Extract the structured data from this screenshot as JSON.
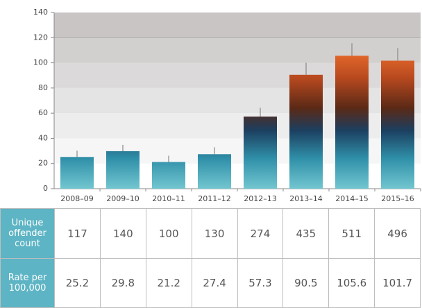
{
  "chart_data": {
    "type": "bar",
    "categories": [
      "2008–09",
      "2009–10",
      "2010–11",
      "2011–12",
      "2012–13",
      "2013–14",
      "2014–15",
      "2015–16"
    ],
    "values": [
      25.2,
      29.8,
      21.2,
      27.4,
      57.3,
      90.5,
      105.6,
      101.7
    ],
    "errors": [
      5,
      5,
      5,
      5.5,
      7,
      9.5,
      10,
      10
    ],
    "ylim": [
      0,
      140
    ],
    "yticks": [
      0,
      20,
      40,
      60,
      80,
      100,
      120,
      140
    ],
    "band_colors": [
      "#ffffff",
      "#f6f6f6",
      "#eeeded",
      "#e5e4e4",
      "#dbd9d9",
      "#d2cfcf",
      "#c9c5c5"
    ],
    "error_color": "#888888"
  },
  "table": {
    "row_headers": [
      "Unique offender count",
      "Rate per 100,000"
    ],
    "counts": [
      117,
      140,
      100,
      130,
      274,
      435,
      511,
      496
    ]
  }
}
